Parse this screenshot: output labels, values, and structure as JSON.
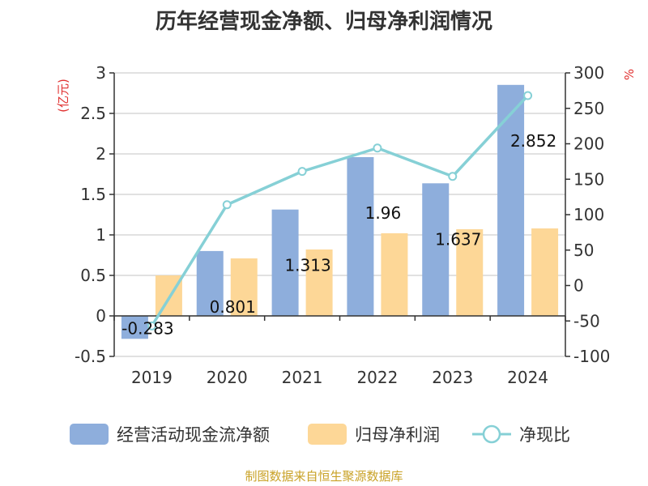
{
  "chart_data": {
    "type": "bar",
    "title": "历年经营现金净额、归母净利润情况",
    "categories": [
      "2019",
      "2020",
      "2021",
      "2022",
      "2023",
      "2024"
    ],
    "series": [
      {
        "name": "经营活动现金流净额",
        "type": "bar",
        "axis": "left",
        "color": "#8eaedc",
        "values": [
          -0.283,
          0.801,
          1.313,
          1.96,
          1.637,
          2.852
        ],
        "labels": [
          "-0.283",
          "0.801",
          "1.313",
          "1.96",
          "1.637",
          "2.852"
        ]
      },
      {
        "name": "归母净利润",
        "type": "bar",
        "axis": "left",
        "color": "#fdd797",
        "values": [
          0.5,
          0.71,
          0.82,
          1.02,
          1.07,
          1.08
        ]
      },
      {
        "name": "净现比",
        "type": "line",
        "axis": "right",
        "color": "#86d0d6",
        "values": [
          -57,
          114,
          161,
          194,
          154,
          268
        ]
      }
    ],
    "y_left": {
      "label": "(亿元)",
      "min": -0.5,
      "max": 3,
      "ticks": [
        "-0.5",
        "0",
        "0.5",
        "1",
        "1.5",
        "2",
        "2.5",
        "3"
      ]
    },
    "y_right": {
      "label": "%",
      "min": -100,
      "max": 300,
      "ticks": [
        "-100",
        "-50",
        "0",
        "50",
        "100",
        "150",
        "200",
        "250",
        "300"
      ]
    },
    "grid": true,
    "legend_position": "bottom"
  },
  "source_note": "制图数据来自恒生聚源数据库"
}
